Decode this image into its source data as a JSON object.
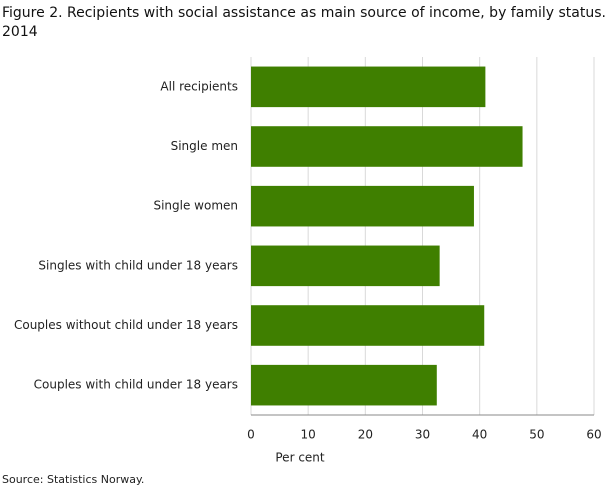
{
  "chart_data": {
    "type": "bar",
    "orientation": "horizontal",
    "title": "Figure 2. Recipients with social assistance as main source of income, by family status. 2014",
    "categories": [
      "All recipients",
      "Single men",
      "Single women",
      "Singles with child under 18 years",
      "Couples without child under 18 years",
      "Couples with child under 18 years"
    ],
    "values": [
      41,
      47.5,
      39,
      33,
      40.8,
      32.5
    ],
    "color": "#3f7f00",
    "xlabel": "Per cent",
    "xlim": [
      0,
      60
    ],
    "xticks": [
      0,
      10,
      20,
      30,
      40,
      50,
      60
    ],
    "grid": true,
    "source": "Source: Statistics Norway."
  }
}
